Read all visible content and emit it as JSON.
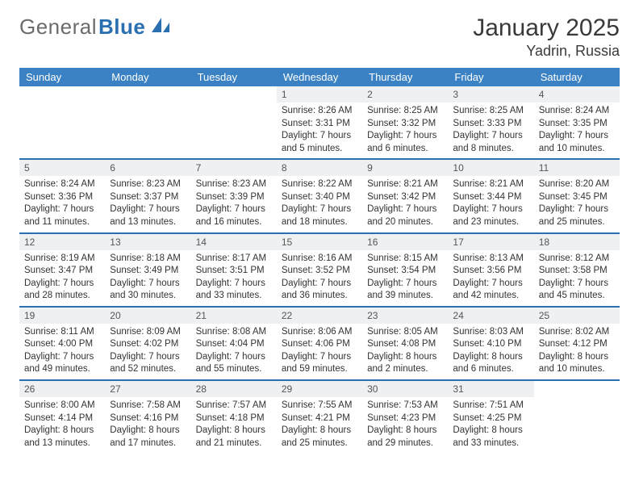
{
  "brand": {
    "first": "General",
    "second": "Blue"
  },
  "title": "January 2025",
  "location": "Yadrin, Russia",
  "colors": {
    "header_blue": "#3b82c4",
    "rule": "#2a6fb0",
    "daynum_bg": "#eef0f2",
    "text": "#333333",
    "background": "#ffffff"
  },
  "typography": {
    "title_fontsize_pt": 22,
    "location_fontsize_pt": 14,
    "weekday_fontsize_pt": 10,
    "cell_fontsize_pt": 8.5,
    "family": "Arial"
  },
  "weekday_labels": [
    "Sunday",
    "Monday",
    "Tuesday",
    "Wednesday",
    "Thursday",
    "Friday",
    "Saturday"
  ],
  "weeks": [
    [
      null,
      null,
      null,
      {
        "n": "1",
        "sunrise": "8:26 AM",
        "sunset": "3:31 PM",
        "daylight": "7 hours and 5 minutes."
      },
      {
        "n": "2",
        "sunrise": "8:25 AM",
        "sunset": "3:32 PM",
        "daylight": "7 hours and 6 minutes."
      },
      {
        "n": "3",
        "sunrise": "8:25 AM",
        "sunset": "3:33 PM",
        "daylight": "7 hours and 8 minutes."
      },
      {
        "n": "4",
        "sunrise": "8:24 AM",
        "sunset": "3:35 PM",
        "daylight": "7 hours and 10 minutes."
      }
    ],
    [
      {
        "n": "5",
        "sunrise": "8:24 AM",
        "sunset": "3:36 PM",
        "daylight": "7 hours and 11 minutes."
      },
      {
        "n": "6",
        "sunrise": "8:23 AM",
        "sunset": "3:37 PM",
        "daylight": "7 hours and 13 minutes."
      },
      {
        "n": "7",
        "sunrise": "8:23 AM",
        "sunset": "3:39 PM",
        "daylight": "7 hours and 16 minutes."
      },
      {
        "n": "8",
        "sunrise": "8:22 AM",
        "sunset": "3:40 PM",
        "daylight": "7 hours and 18 minutes."
      },
      {
        "n": "9",
        "sunrise": "8:21 AM",
        "sunset": "3:42 PM",
        "daylight": "7 hours and 20 minutes."
      },
      {
        "n": "10",
        "sunrise": "8:21 AM",
        "sunset": "3:44 PM",
        "daylight": "7 hours and 23 minutes."
      },
      {
        "n": "11",
        "sunrise": "8:20 AM",
        "sunset": "3:45 PM",
        "daylight": "7 hours and 25 minutes."
      }
    ],
    [
      {
        "n": "12",
        "sunrise": "8:19 AM",
        "sunset": "3:47 PM",
        "daylight": "7 hours and 28 minutes."
      },
      {
        "n": "13",
        "sunrise": "8:18 AM",
        "sunset": "3:49 PM",
        "daylight": "7 hours and 30 minutes."
      },
      {
        "n": "14",
        "sunrise": "8:17 AM",
        "sunset": "3:51 PM",
        "daylight": "7 hours and 33 minutes."
      },
      {
        "n": "15",
        "sunrise": "8:16 AM",
        "sunset": "3:52 PM",
        "daylight": "7 hours and 36 minutes."
      },
      {
        "n": "16",
        "sunrise": "8:15 AM",
        "sunset": "3:54 PM",
        "daylight": "7 hours and 39 minutes."
      },
      {
        "n": "17",
        "sunrise": "8:13 AM",
        "sunset": "3:56 PM",
        "daylight": "7 hours and 42 minutes."
      },
      {
        "n": "18",
        "sunrise": "8:12 AM",
        "sunset": "3:58 PM",
        "daylight": "7 hours and 45 minutes."
      }
    ],
    [
      {
        "n": "19",
        "sunrise": "8:11 AM",
        "sunset": "4:00 PM",
        "daylight": "7 hours and 49 minutes."
      },
      {
        "n": "20",
        "sunrise": "8:09 AM",
        "sunset": "4:02 PM",
        "daylight": "7 hours and 52 minutes."
      },
      {
        "n": "21",
        "sunrise": "8:08 AM",
        "sunset": "4:04 PM",
        "daylight": "7 hours and 55 minutes."
      },
      {
        "n": "22",
        "sunrise": "8:06 AM",
        "sunset": "4:06 PM",
        "daylight": "7 hours and 59 minutes."
      },
      {
        "n": "23",
        "sunrise": "8:05 AM",
        "sunset": "4:08 PM",
        "daylight": "8 hours and 2 minutes."
      },
      {
        "n": "24",
        "sunrise": "8:03 AM",
        "sunset": "4:10 PM",
        "daylight": "8 hours and 6 minutes."
      },
      {
        "n": "25",
        "sunrise": "8:02 AM",
        "sunset": "4:12 PM",
        "daylight": "8 hours and 10 minutes."
      }
    ],
    [
      {
        "n": "26",
        "sunrise": "8:00 AM",
        "sunset": "4:14 PM",
        "daylight": "8 hours and 13 minutes."
      },
      {
        "n": "27",
        "sunrise": "7:58 AM",
        "sunset": "4:16 PM",
        "daylight": "8 hours and 17 minutes."
      },
      {
        "n": "28",
        "sunrise": "7:57 AM",
        "sunset": "4:18 PM",
        "daylight": "8 hours and 21 minutes."
      },
      {
        "n": "29",
        "sunrise": "7:55 AM",
        "sunset": "4:21 PM",
        "daylight": "8 hours and 25 minutes."
      },
      {
        "n": "30",
        "sunrise": "7:53 AM",
        "sunset": "4:23 PM",
        "daylight": "8 hours and 29 minutes."
      },
      {
        "n": "31",
        "sunrise": "7:51 AM",
        "sunset": "4:25 PM",
        "daylight": "8 hours and 33 minutes."
      },
      null
    ]
  ],
  "labels": {
    "sunrise_prefix": "Sunrise: ",
    "sunset_prefix": "Sunset: ",
    "daylight_prefix": "Daylight: "
  }
}
